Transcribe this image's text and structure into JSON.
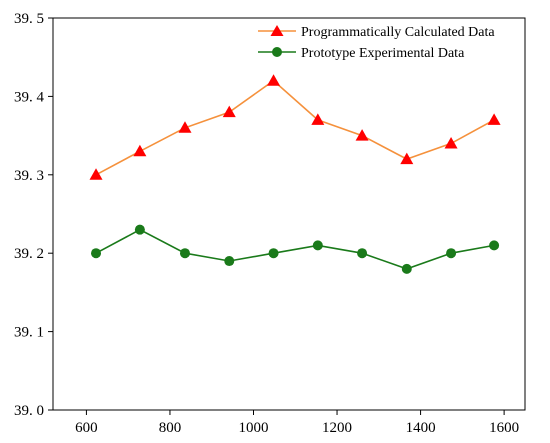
{
  "chart_data": {
    "type": "line",
    "title": "",
    "xlabel": "",
    "ylabel": "",
    "x": [
      623,
      728,
      836,
      942,
      1048,
      1154,
      1260,
      1367,
      1473,
      1576
    ],
    "xlim": [
      520,
      1650
    ],
    "ylim": [
      39.0,
      39.5
    ],
    "xticks": [
      600,
      800,
      1000,
      1200,
      1400,
      1600
    ],
    "yticks": [
      39.0,
      39.1,
      39.2,
      39.3,
      39.4,
      39.5
    ],
    "xtick_labels": [
      "600",
      "800",
      "1000",
      "1200",
      "1400",
      "1600"
    ],
    "ytick_labels": [
      "39. 0",
      "39. 1",
      "39. 2",
      "39. 3",
      "39. 4",
      "39. 5"
    ],
    "grid": false,
    "legend_position": "top-right",
    "series": [
      {
        "name": "Programmatically Calculated Data",
        "line_color": "#f5913c",
        "marker_color": "#ff0000",
        "marker": "triangle",
        "values": [
          39.3,
          39.33,
          39.36,
          39.38,
          39.42,
          39.37,
          39.35,
          39.32,
          39.34,
          39.37
        ]
      },
      {
        "name": "Prototype Experimental Data",
        "line_color": "#1a7a1a",
        "marker_color": "#1a7a1a",
        "marker": "circle",
        "values": [
          39.2,
          39.23,
          39.2,
          39.19,
          39.2,
          39.21,
          39.2,
          39.18,
          39.2,
          39.21
        ]
      }
    ]
  }
}
